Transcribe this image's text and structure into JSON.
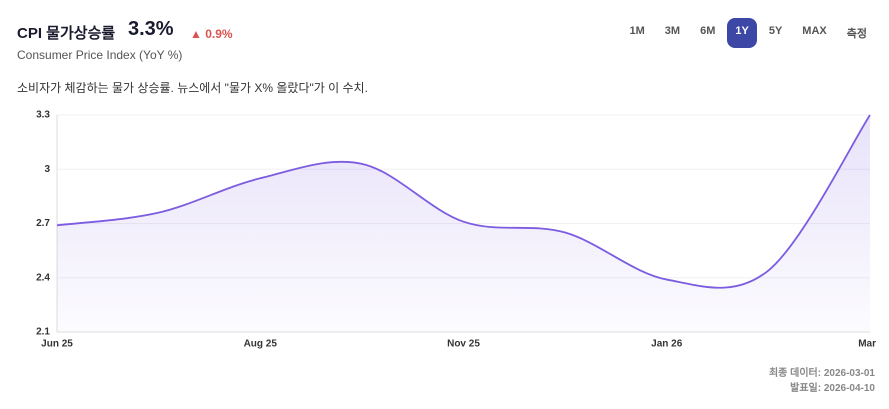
{
  "header": {
    "title": "CPI 물가상승률",
    "value": "3.3%",
    "change": "▲ 0.9%",
    "subtitle": "Consumer Price Index (YoY %)"
  },
  "ranges": {
    "items": [
      "1M",
      "3M",
      "6M",
      "1Y",
      "5Y",
      "MAX",
      "측정"
    ],
    "active": 3
  },
  "description": "소비자가 체감하는 물가 상승률. 뉴스에서 \"물가 X% 올랐다\"가 이 수치.",
  "chart_data": {
    "type": "area",
    "categories": [
      "Jun 25",
      null,
      "Aug 25",
      null,
      "Nov 25",
      null,
      "Jan 26",
      null,
      "Mar"
    ],
    "series": [
      {
        "name": "CPI",
        "color": "#7c5ce0",
        "values": [
          2.69,
          2.76,
          2.95,
          3.03,
          2.71,
          2.65,
          2.39,
          2.44,
          3.3
        ]
      }
    ],
    "ylim": [
      2.1,
      3.3
    ],
    "yticks": [
      2.1,
      2.4,
      2.7,
      3,
      3.3
    ],
    "grid": true
  },
  "footer": {
    "last_data": "최종 데이터: 2026-03-01",
    "release": "발표일: 2026-04-10"
  }
}
